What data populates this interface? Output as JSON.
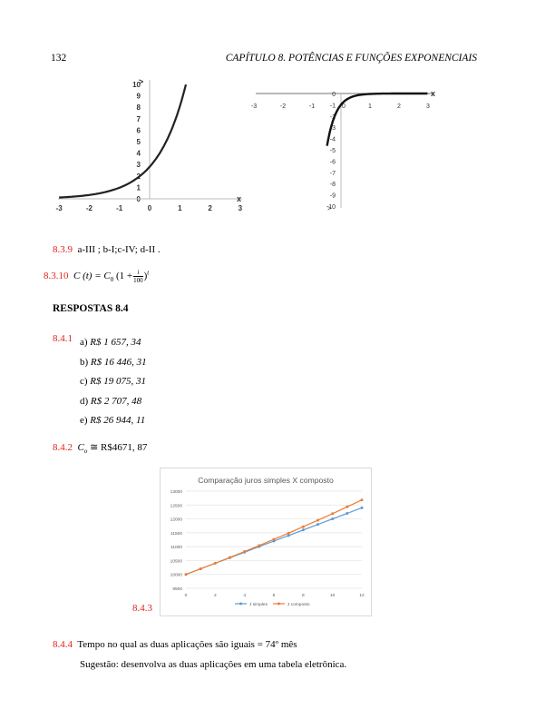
{
  "header": {
    "page_number": "132",
    "chapter_title": "CAPÍTULO 8.  POTÊNCIAS E FUNÇÕES EXPONENCIAIS"
  },
  "graph_left": {
    "x_ticks": [
      "-3",
      "-2",
      "-1",
      "0",
      "1",
      "2",
      "3"
    ],
    "y_ticks": [
      "0",
      "1",
      "2",
      "3",
      "4",
      "5",
      "6",
      "7",
      "8",
      "9",
      "10"
    ],
    "x_axis_label": "x"
  },
  "graph_right": {
    "x_ticks": [
      "-3",
      "-2",
      "-1",
      "0",
      "1",
      "2",
      "3"
    ],
    "y_ticks": [
      "0",
      "-1",
      "-2",
      "-3",
      "-4",
      "-5",
      "-6",
      "-7",
      "-8",
      "-9",
      "-10"
    ],
    "x_axis_label": "x"
  },
  "items": {
    "i839": {
      "number": "8.3.9",
      "text": "a-III ; b-I;c-IV; d-II ."
    },
    "i8310": {
      "number": "8.3.10",
      "formula_lhs": "C (t) = C",
      "sub0": "0",
      "paren_open": "(1 +",
      "frac_num": "i",
      "frac_den": "100",
      "paren_close": ")",
      "exponent": "t"
    },
    "section_title": "RESPOSTAS 8.4",
    "i841": {
      "number": "8.4.1",
      "answers": [
        {
          "letter": "a)",
          "value": "R$ 1 657, 34"
        },
        {
          "letter": "b)",
          "value": "R$ 16 446, 31"
        },
        {
          "letter": "c)",
          "value": "R$ 19 075, 31"
        },
        {
          "letter": "d)",
          "value": "R$ 2 707, 48"
        },
        {
          "letter": "e)",
          "value": "R$ 26 944, 11"
        }
      ]
    },
    "i842": {
      "number": "8.4.2",
      "c": "C",
      "sub": "o",
      "rest": " ≅ R$4671, 87"
    },
    "i843": {
      "number": "8.4.3"
    },
    "i844": {
      "number": "8.4.4",
      "text": "Tempo no qual as duas aplicações são iguais = 74º mês",
      "suggestion": "Sugestão: desenvolva as duas aplicações em uma tabela eletrônica."
    }
  },
  "chart_data": {
    "type": "line",
    "title": "Comparação juros simples X composto",
    "x": [
      0,
      1,
      2,
      3,
      4,
      5,
      6,
      7,
      8,
      9,
      10,
      11,
      12
    ],
    "x_ticks": [
      "0",
      "2",
      "4",
      "6",
      "8",
      "10",
      "12"
    ],
    "y_ticks": [
      "9500",
      "10000",
      "10500",
      "11000",
      "11500",
      "12000",
      "12500",
      "13000"
    ],
    "ylim": [
      9500,
      13000
    ],
    "series": [
      {
        "name": "J simples",
        "color": "#5b9bd5",
        "values": [
          10000,
          10200,
          10400,
          10600,
          10800,
          11000,
          11200,
          11400,
          11600,
          11800,
          12000,
          12200,
          12400
        ]
      },
      {
        "name": "J composto",
        "color": "#ed7d31",
        "values": [
          10000,
          10200,
          10404,
          10612,
          10824,
          11041,
          11262,
          11487,
          11717,
          11951,
          12190,
          12434,
          12682
        ]
      }
    ],
    "grid": true,
    "legend": "bottom"
  }
}
